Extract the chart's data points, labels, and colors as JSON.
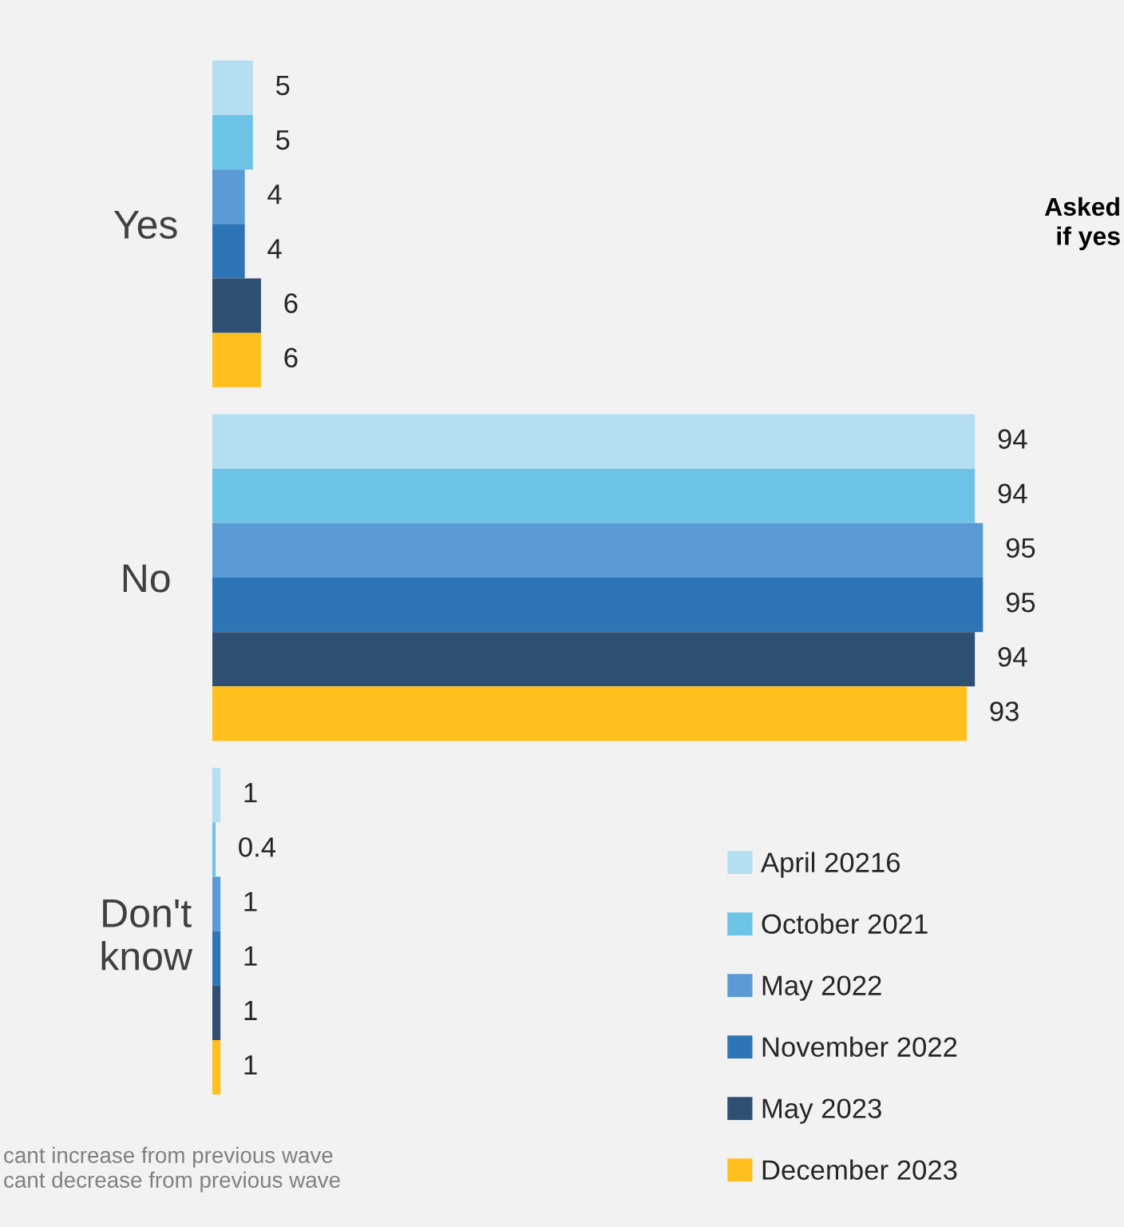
{
  "chart_data": {
    "type": "bar",
    "orientation": "horizontal",
    "categories": [
      "Yes",
      "No",
      "Don't\nknow"
    ],
    "series": [
      {
        "name": "April 20216",
        "color": "#b4dff2",
        "values": [
          5,
          94,
          1
        ]
      },
      {
        "name": "October 2021",
        "color": "#6cc3e6",
        "values": [
          5,
          94,
          0.4
        ]
      },
      {
        "name": "May 2022",
        "color": "#5b9bd5",
        "values": [
          4,
          95,
          1
        ]
      },
      {
        "name": "November 2022",
        "color": "#2e75b6",
        "values": [
          4,
          95,
          1
        ]
      },
      {
        "name": "May 2023",
        "color": "#2f4f73",
        "values": [
          6,
          94,
          1
        ]
      },
      {
        "name": "December 2023",
        "color": "#ffc01d",
        "values": [
          6,
          93,
          1
        ]
      }
    ],
    "data_labels": true,
    "tick_labels": "y",
    "grid": false,
    "legend": "bottom right",
    "annotations": [
      "Asked\nif yes",
      "cant increase from previous wave\ncant decrease from previous wave"
    ]
  }
}
